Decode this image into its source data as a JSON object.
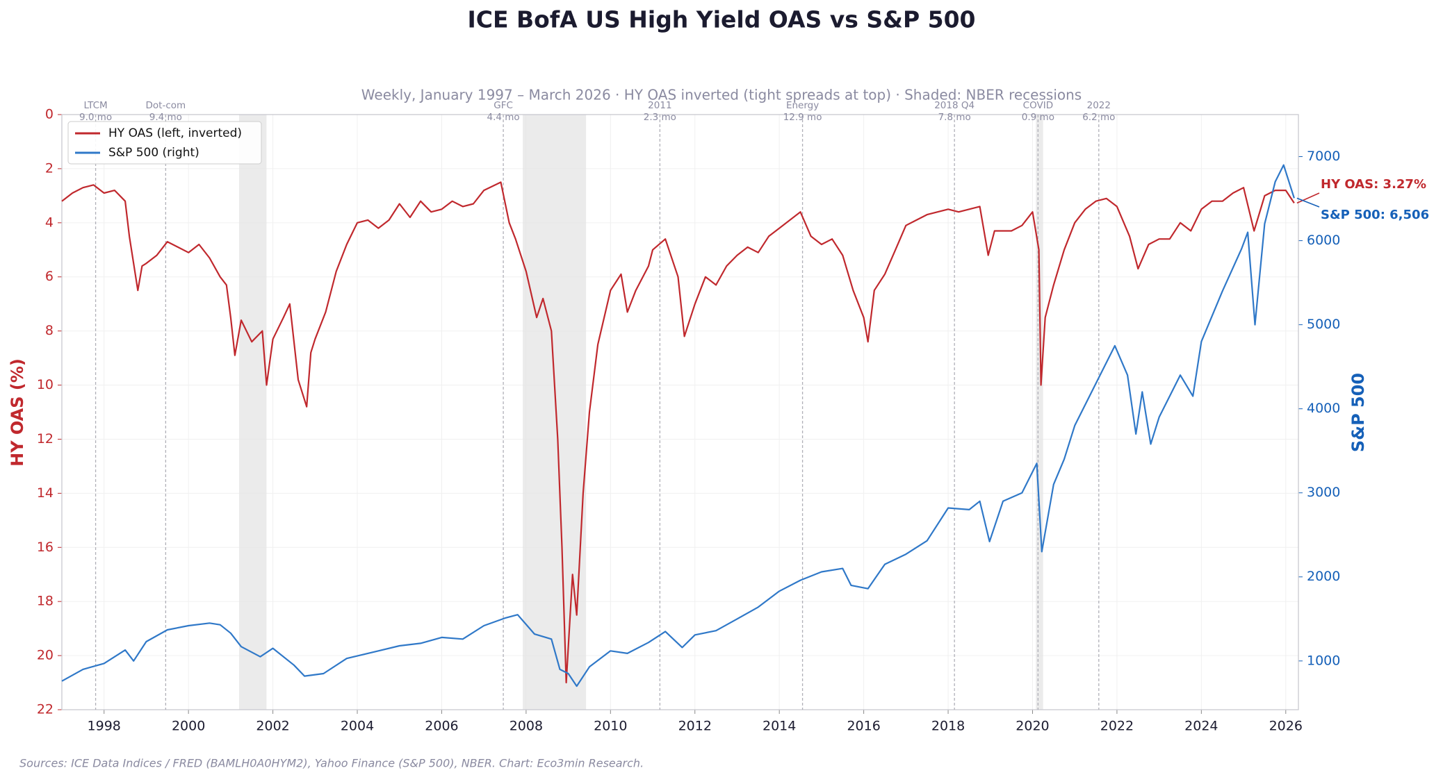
{
  "chart_data": {
    "type": "line",
    "title": "ICE BofA US High Yield OAS vs S&P 500",
    "subtitle": "Weekly, January 1997 – March 2026 · HY OAS inverted (tight spreads at top) · Shaded: NBER recessions",
    "source": "Sources: ICE Data Indices / FRED (BAMLH0A0HYM2), Yahoo Finance (S&P 500), NBER.  Chart: Eco3min Research.",
    "y_label": "HY OAS (%)",
    "y2_label": "S&P 500",
    "xlim": [
      1997.0,
      2026.3
    ],
    "xticks": [
      1998,
      2000,
      2002,
      2004,
      2006,
      2008,
      2010,
      2012,
      2014,
      2016,
      2018,
      2020,
      2022,
      2024,
      2026
    ],
    "ylim": [
      0,
      22
    ],
    "y_inverted": true,
    "yticks": [
      0,
      2,
      4,
      6,
      8,
      10,
      12,
      14,
      16,
      18,
      20,
      22
    ],
    "y2lim": [
      420,
      7500
    ],
    "y2ticks": [
      1000,
      2000,
      3000,
      4000,
      5000,
      6000,
      7000
    ],
    "grid": true,
    "legend": "upper left",
    "recessions": [
      [
        2001.2,
        2001.85
      ],
      [
        2007.92,
        2009.42
      ],
      [
        2020.08,
        2020.25
      ]
    ],
    "events": [
      {
        "x": 1997.8,
        "label": "LTCM",
        "duration": "9.0 mo"
      },
      {
        "x": 1999.46,
        "label": "Dot-com",
        "duration": "9.4 mo"
      },
      {
        "x": 2007.46,
        "label": "GFC",
        "duration": "4.4 mo"
      },
      {
        "x": 2011.17,
        "label": "2011",
        "duration": "2.3 mo"
      },
      {
        "x": 2014.55,
        "label": "Energy",
        "duration": "12.9 mo"
      },
      {
        "x": 2018.15,
        "label": "2018 Q4",
        "duration": "7.8 mo"
      },
      {
        "x": 2020.13,
        "label": "COVID",
        "duration": "0.9 mo"
      },
      {
        "x": 2021.57,
        "label": "2022",
        "duration": "6.2 mo"
      }
    ],
    "annotations": [
      "HY OAS: 3.27%",
      "S&P 500: 6,506"
    ],
    "series": [
      {
        "name": "HY OAS (left, inverted)",
        "color": "#c0282d",
        "axis": "y",
        "x": [
          1997.0,
          1997.25,
          1997.5,
          1997.75,
          1998.0,
          1998.25,
          1998.5,
          1998.6,
          1998.8,
          1998.9,
          1999.0,
          1999.25,
          1999.5,
          1999.75,
          2000.0,
          2000.25,
          2000.5,
          2000.75,
          2000.9,
          2001.0,
          2001.1,
          2001.25,
          2001.5,
          2001.75,
          2001.85,
          2002.0,
          2002.25,
          2002.4,
          2002.6,
          2002.8,
          2002.9,
          2003.0,
          2003.25,
          2003.5,
          2003.75,
          2004.0,
          2004.25,
          2004.5,
          2004.75,
          2005.0,
          2005.25,
          2005.5,
          2005.75,
          2006.0,
          2006.25,
          2006.5,
          2006.75,
          2007.0,
          2007.4,
          2007.6,
          2007.75,
          2008.0,
          2008.25,
          2008.4,
          2008.6,
          2008.75,
          2008.85,
          2008.95,
          2009.1,
          2009.2,
          2009.35,
          2009.5,
          2009.7,
          2010.0,
          2010.25,
          2010.4,
          2010.6,
          2010.9,
          2011.0,
          2011.3,
          2011.6,
          2011.75,
          2012.0,
          2012.25,
          2012.5,
          2012.75,
          2013.0,
          2013.25,
          2013.5,
          2013.75,
          2014.0,
          2014.5,
          2014.75,
          2015.0,
          2015.25,
          2015.5,
          2015.75,
          2016.0,
          2016.1,
          2016.25,
          2016.5,
          2016.75,
          2017.0,
          2017.25,
          2017.5,
          2017.75,
          2018.0,
          2018.25,
          2018.5,
          2018.75,
          2018.95,
          2019.1,
          2019.5,
          2019.75,
          2020.0,
          2020.15,
          2020.2,
          2020.3,
          2020.5,
          2020.75,
          2021.0,
          2021.25,
          2021.5,
          2021.75,
          2022.0,
          2022.3,
          2022.5,
          2022.75,
          2023.0,
          2023.25,
          2023.5,
          2023.75,
          2024.0,
          2024.25,
          2024.5,
          2024.75,
          2025.0,
          2025.25,
          2025.5,
          2025.75,
          2026.0,
          2026.2
        ],
        "values": [
          3.2,
          2.9,
          2.7,
          2.6,
          2.9,
          2.8,
          3.2,
          4.5,
          6.5,
          5.6,
          5.5,
          5.2,
          4.7,
          4.9,
          5.1,
          4.8,
          5.3,
          6.0,
          6.3,
          7.5,
          8.9,
          7.6,
          8.4,
          8.0,
          10.0,
          8.3,
          7.5,
          7.0,
          9.8,
          10.8,
          8.8,
          8.3,
          7.3,
          5.8,
          4.8,
          4.0,
          3.9,
          4.2,
          3.9,
          3.3,
          3.8,
          3.2,
          3.6,
          3.5,
          3.2,
          3.4,
          3.3,
          2.8,
          2.5,
          4.0,
          4.6,
          5.8,
          7.5,
          6.8,
          8.0,
          12.0,
          16.0,
          21.0,
          17.0,
          18.5,
          14.0,
          11.0,
          8.5,
          6.5,
          5.9,
          7.3,
          6.5,
          5.6,
          5.0,
          4.6,
          6.0,
          8.2,
          7.0,
          6.0,
          6.3,
          5.6,
          5.2,
          4.9,
          5.1,
          4.5,
          4.2,
          3.6,
          4.5,
          4.8,
          4.6,
          5.2,
          6.5,
          7.5,
          8.4,
          6.5,
          5.9,
          5.0,
          4.1,
          3.9,
          3.7,
          3.6,
          3.5,
          3.6,
          3.5,
          3.4,
          5.2,
          4.3,
          4.3,
          4.1,
          3.6,
          5.0,
          10.0,
          7.5,
          6.3,
          5.0,
          4.0,
          3.5,
          3.2,
          3.1,
          3.4,
          4.5,
          5.7,
          4.8,
          4.6,
          4.6,
          4.0,
          4.3,
          3.5,
          3.2,
          3.2,
          2.9,
          2.7,
          4.3,
          3.0,
          2.8,
          2.8,
          3.27
        ]
      },
      {
        "name": "S&P 500 (right)",
        "color": "#2f78c8",
        "axis": "y2",
        "x": [
          1997.0,
          1997.5,
          1998.0,
          1998.5,
          1998.7,
          1999.0,
          1999.5,
          2000.0,
          2000.5,
          2000.75,
          2001.0,
          2001.25,
          2001.7,
          2002.0,
          2002.5,
          2002.75,
          2003.2,
          2003.75,
          2004.5,
          2005.0,
          2005.5,
          2006.0,
          2006.5,
          2007.0,
          2007.5,
          2007.8,
          2008.2,
          2008.6,
          2008.8,
          2009.0,
          2009.2,
          2009.5,
          2010.0,
          2010.4,
          2010.9,
          2011.3,
          2011.7,
          2012.0,
          2012.5,
          2013.0,
          2013.5,
          2014.0,
          2014.5,
          2015.0,
          2015.5,
          2015.7,
          2016.1,
          2016.5,
          2017.0,
          2017.5,
          2018.0,
          2018.5,
          2018.75,
          2018.98,
          2019.3,
          2019.75,
          2020.1,
          2020.22,
          2020.5,
          2020.75,
          2021.0,
          2021.5,
          2021.95,
          2022.25,
          2022.45,
          2022.6,
          2022.8,
          2023.0,
          2023.5,
          2023.8,
          2024.0,
          2024.5,
          2024.95,
          2025.1,
          2025.27,
          2025.5,
          2025.75,
          2025.95,
          2026.2
        ],
        "values": [
          760,
          900,
          970,
          1130,
          1000,
          1230,
          1370,
          1420,
          1450,
          1430,
          1330,
          1170,
          1050,
          1150,
          950,
          820,
          850,
          1030,
          1120,
          1180,
          1210,
          1280,
          1260,
          1420,
          1510,
          1550,
          1320,
          1260,
          900,
          850,
          700,
          930,
          1120,
          1090,
          1220,
          1350,
          1160,
          1310,
          1360,
          1500,
          1640,
          1830,
          1960,
          2060,
          2100,
          1900,
          1860,
          2150,
          2270,
          2430,
          2820,
          2800,
          2900,
          2420,
          2900,
          3000,
          3350,
          2300,
          3100,
          3400,
          3800,
          4300,
          4750,
          4400,
          3700,
          4200,
          3580,
          3900,
          4400,
          4150,
          4800,
          5400,
          5900,
          6100,
          5000,
          6200,
          6700,
          6900,
          6506
        ]
      }
    ]
  }
}
